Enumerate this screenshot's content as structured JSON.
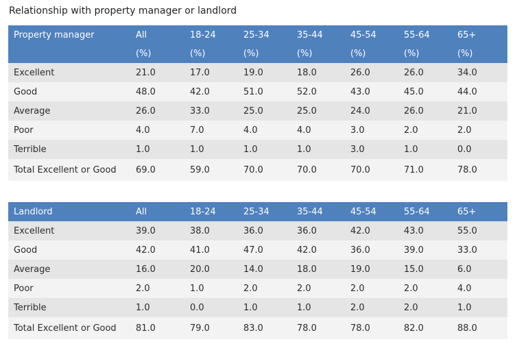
{
  "title": "Relationship with property manager or landlord",
  "tables": [
    {
      "header": [
        "Property manager",
        "All",
        "18-24",
        "25-34",
        "35-44",
        "45-54",
        "55-64",
        "65+"
      ],
      "units": [
        "",
        "(%)",
        "(%)",
        "(%)",
        "(%)",
        "(%)",
        "(%)",
        "(%)"
      ],
      "rows": [
        [
          "Excellent",
          "21.0",
          "17.0",
          "19.0",
          "18.0",
          "26.0",
          "26.0",
          "34.0"
        ],
        [
          "Good",
          "48.0",
          "42.0",
          "51.0",
          "52.0",
          "43.0",
          "45.0",
          "44.0"
        ],
        [
          "Average",
          "26.0",
          "33.0",
          "25.0",
          "25.0",
          "24.0",
          "26.0",
          "21.0"
        ],
        [
          "Poor",
          "4.0",
          "7.0",
          "4.0",
          "4.0",
          "3.0",
          "2.0",
          "2.0"
        ],
        [
          "Terrible",
          "1.0",
          "1.0",
          "1.0",
          "1.0",
          "3.0",
          "1.0",
          "0.0"
        ],
        [
          "Total Excellent or Good",
          "69.0",
          "59.0",
          "70.0",
          "70.0",
          "70.0",
          "71.0",
          "78.0"
        ]
      ]
    },
    {
      "header": [
        "Landlord",
        "All",
        "18-24",
        "25-34",
        "35-44",
        "45-54",
        "55-64",
        "65+"
      ],
      "rows": [
        [
          "Excellent",
          "39.0",
          "38.0",
          "36.0",
          "36.0",
          "42.0",
          "43.0",
          "55.0"
        ],
        [
          "Good",
          "42.0",
          "41.0",
          "47.0",
          "42.0",
          "36.0",
          "39.0",
          "33.0"
        ],
        [
          "Average",
          "16.0",
          "20.0",
          "14.0",
          "18.0",
          "19.0",
          "15.0",
          "6.0"
        ],
        [
          "Poor",
          "2.0",
          "1.0",
          "2.0",
          "2.0",
          "2.0",
          "2.0",
          "4.0"
        ],
        [
          "Terrible",
          "1.0",
          "0.0",
          "1.0",
          "1.0",
          "2.0",
          "2.0",
          "1.0"
        ],
        [
          "Total Excellent or Good",
          "81.0",
          "79.0",
          "83.0",
          "78.0",
          "78.0",
          "82.0",
          "88.0"
        ]
      ]
    }
  ],
  "colors": {
    "header_bg": "#4f81bd",
    "header_text": "#ffffff",
    "row_odd": "#e5e5e5",
    "row_even": "#f3f3f3"
  }
}
